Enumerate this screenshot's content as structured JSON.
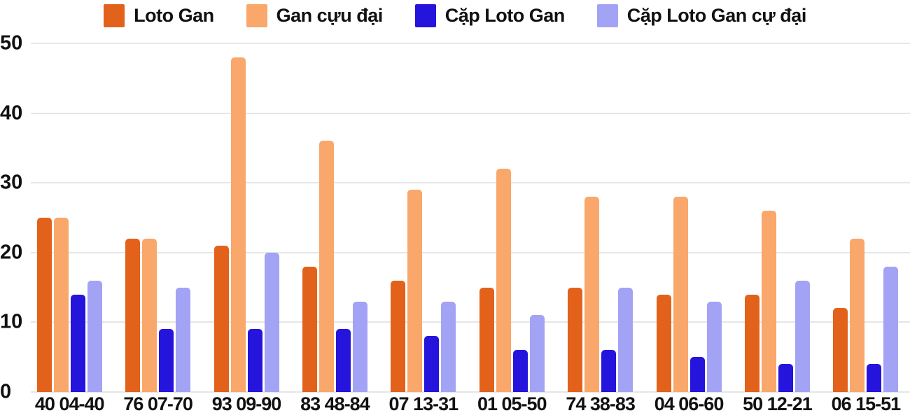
{
  "chart_data": {
    "type": "bar",
    "title": "",
    "xlabel": "",
    "ylabel": "",
    "categories": [
      "40 04-40",
      "76 07-70",
      "93 09-90",
      "83 48-84",
      "07 13-31",
      "01 05-50",
      "74 38-83",
      "04 06-60",
      "50 12-21",
      "06 15-51"
    ],
    "series": [
      {
        "name": "Loto Gan",
        "color": "#E2621B",
        "values": [
          25,
          22,
          21,
          18,
          16,
          15,
          15,
          14,
          14,
          12
        ]
      },
      {
        "name": "Gan cựu đại",
        "color": "#FAA76B",
        "values": [
          25,
          22,
          48,
          36,
          29,
          32,
          28,
          28,
          26,
          22
        ]
      },
      {
        "name": "Cặp Loto Gan",
        "color": "#2414DC",
        "values": [
          14,
          9,
          9,
          9,
          8,
          6,
          6,
          5,
          4,
          4
        ]
      },
      {
        "name": "Cặp Loto Gan cự đại",
        "color": "#A3A3F5",
        "values": [
          16,
          15,
          20,
          13,
          13,
          11,
          15,
          13,
          16,
          18
        ]
      }
    ],
    "ylim": [
      0,
      50
    ],
    "yticks": [
      0,
      10,
      20,
      30,
      40,
      50
    ],
    "grid": true,
    "legend_position": "top"
  },
  "colors": {
    "background": "#ffffff",
    "text": "#111111",
    "gridline": "#e6e6e6"
  }
}
